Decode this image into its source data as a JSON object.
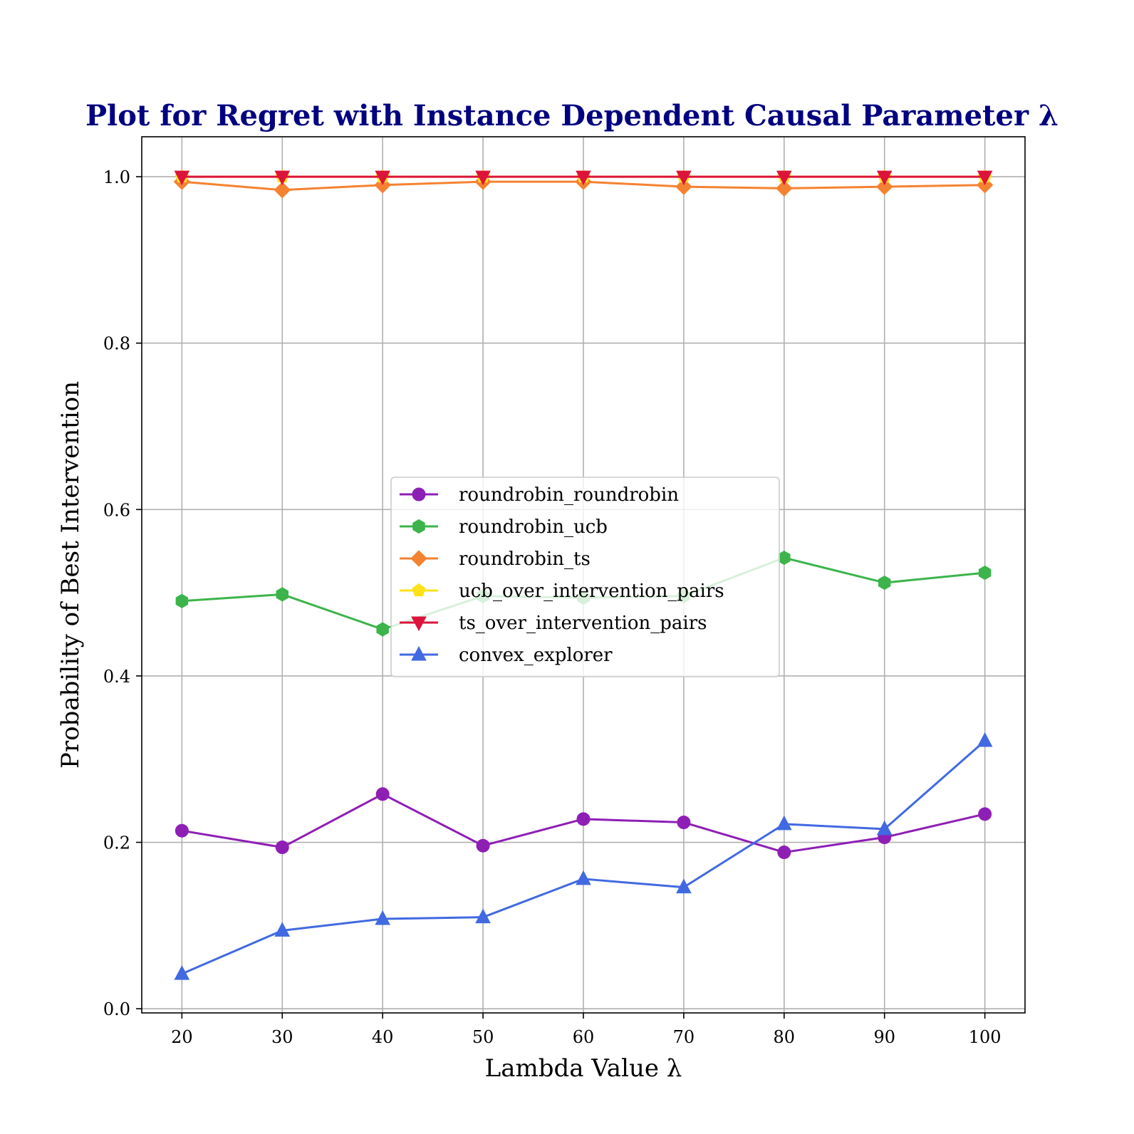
{
  "chart_data": {
    "type": "line",
    "title": "Plot for Regret with Instance Dependent Causal Parameter λ",
    "xlabel": "Lambda Value λ",
    "ylabel": "Probability of Best Intervention",
    "x": [
      20,
      30,
      40,
      50,
      60,
      70,
      80,
      90,
      100
    ],
    "xlim": [
      16,
      104
    ],
    "ylim": [
      -0.005,
      1.048
    ],
    "xticks": [
      "20",
      "30",
      "40",
      "50",
      "60",
      "70",
      "80",
      "90",
      "100"
    ],
    "yticks": [
      "0.0",
      "0.2",
      "0.4",
      "0.6",
      "0.8",
      "1.0"
    ],
    "grid": true,
    "legend_position": "center",
    "title_color": "#000080",
    "series": [
      {
        "name": "roundrobin_roundrobin",
        "color": "#8e1fb5",
        "marker": "circle",
        "values": [
          0.214,
          0.194,
          0.258,
          0.196,
          0.228,
          0.224,
          0.188,
          0.206,
          0.234
        ]
      },
      {
        "name": "roundrobin_ucb",
        "color": "#3cb44b",
        "marker": "hexagon",
        "values": [
          0.49,
          0.498,
          0.456,
          0.496,
          0.494,
          0.496,
          0.542,
          0.512,
          0.524
        ]
      },
      {
        "name": "roundrobin_ts",
        "color": "#f58231",
        "marker": "diamond",
        "values": [
          0.994,
          0.984,
          0.99,
          0.994,
          0.994,
          0.988,
          0.986,
          0.988,
          0.99
        ]
      },
      {
        "name": "ucb_over_intervention_pairs",
        "color": "#ffe119",
        "marker": "pentagon",
        "values": [
          1.0,
          1.0,
          1.0,
          1.0,
          1.0,
          1.0,
          1.0,
          1.0,
          1.0
        ]
      },
      {
        "name": "ts_over_intervention_pairs",
        "color": "#dc143c",
        "marker": "triangle-down",
        "values": [
          1.0,
          1.0,
          1.0,
          1.0,
          1.0,
          1.0,
          1.0,
          1.0,
          1.0
        ]
      },
      {
        "name": "convex_explorer",
        "color": "#4169e1",
        "marker": "triangle-up",
        "values": [
          0.042,
          0.094,
          0.108,
          0.11,
          0.156,
          0.146,
          0.222,
          0.216,
          0.322
        ]
      }
    ]
  }
}
